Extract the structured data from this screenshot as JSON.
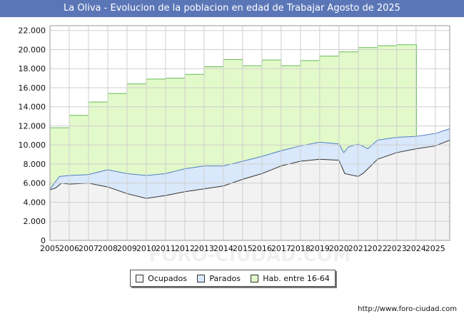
{
  "title": "La Oliva - Evolucion de la poblacion en edad de Trabajar Agosto de 2025",
  "source": "http://www.foro-ciudad.com",
  "watermark": "FORO-CIUDAD.COM",
  "chart_data": {
    "type": "area",
    "x_ticks": [
      "2005",
      "2006",
      "2007",
      "2008",
      "2009",
      "2010",
      "2011",
      "2012",
      "2013",
      "2014",
      "2015",
      "2016",
      "2017",
      "2018",
      "2019",
      "2020",
      "2021",
      "2022",
      "2023",
      "2024",
      "2025"
    ],
    "y_ticks": [
      "0",
      "2.000",
      "4.000",
      "6.000",
      "8.000",
      "10.000",
      "12.000",
      "14.000",
      "16.000",
      "18.000",
      "20.000",
      "22.000"
    ],
    "ylim": [
      0,
      22500
    ],
    "xlim": [
      2005,
      2025.75
    ],
    "grid": true,
    "legend_position": "bottom",
    "colors": {
      "Ocupados": "#f2f2f2",
      "Parados": "#d9e8fb",
      "Hab. entre 16-64": "#e2f9c9",
      "hab_line": "#66bb55",
      "parados_line": "#4f7fc4",
      "ocupados_line": "#333333"
    },
    "series": [
      {
        "name": "Hab. entre 16-64",
        "step": true,
        "x": [
          2005,
          2006,
          2007,
          2008,
          2009,
          2010,
          2011,
          2012,
          2013,
          2014,
          2015,
          2016,
          2017,
          2018,
          2019,
          2020,
          2021,
          2022,
          2023,
          2024
        ],
        "values": [
          11800,
          13100,
          14500,
          15400,
          16400,
          16900,
          17000,
          17400,
          18200,
          18950,
          18300,
          18900,
          18300,
          18850,
          19300,
          19750,
          20200,
          20400,
          20500,
          20500
        ]
      },
      {
        "name": "Parados",
        "x": [
          2005,
          2005.5,
          2006,
          2007,
          2008,
          2009,
          2010,
          2011,
          2012,
          2013,
          2014,
          2015,
          2016,
          2017,
          2018,
          2019,
          2020,
          2020.25,
          2020.5,
          2021,
          2021.5,
          2022,
          2023,
          2024,
          2025,
          2025.75
        ],
        "values": [
          5400,
          6700,
          6800,
          6900,
          7400,
          7000,
          6800,
          7000,
          7500,
          7800,
          7800,
          8300,
          8800,
          9400,
          9900,
          10300,
          10100,
          9200,
          9800,
          10100,
          9600,
          10500,
          10800,
          10900,
          11200,
          11700
        ]
      },
      {
        "name": "Ocupados",
        "x": [
          2005,
          2005.3,
          2005.6,
          2006,
          2007,
          2008,
          2009,
          2010,
          2011,
          2012,
          2013,
          2014,
          2015,
          2016,
          2017,
          2018,
          2019,
          2020,
          2020.3,
          2021,
          2021.3,
          2022,
          2023,
          2024,
          2025,
          2025.75
        ],
        "values": [
          5300,
          5500,
          6000,
          5900,
          6000,
          5600,
          4900,
          4400,
          4700,
          5100,
          5400,
          5700,
          6400,
          7000,
          7800,
          8300,
          8500,
          8400,
          7000,
          6700,
          7100,
          8500,
          9200,
          9600,
          9900,
          10500
        ]
      }
    ]
  }
}
